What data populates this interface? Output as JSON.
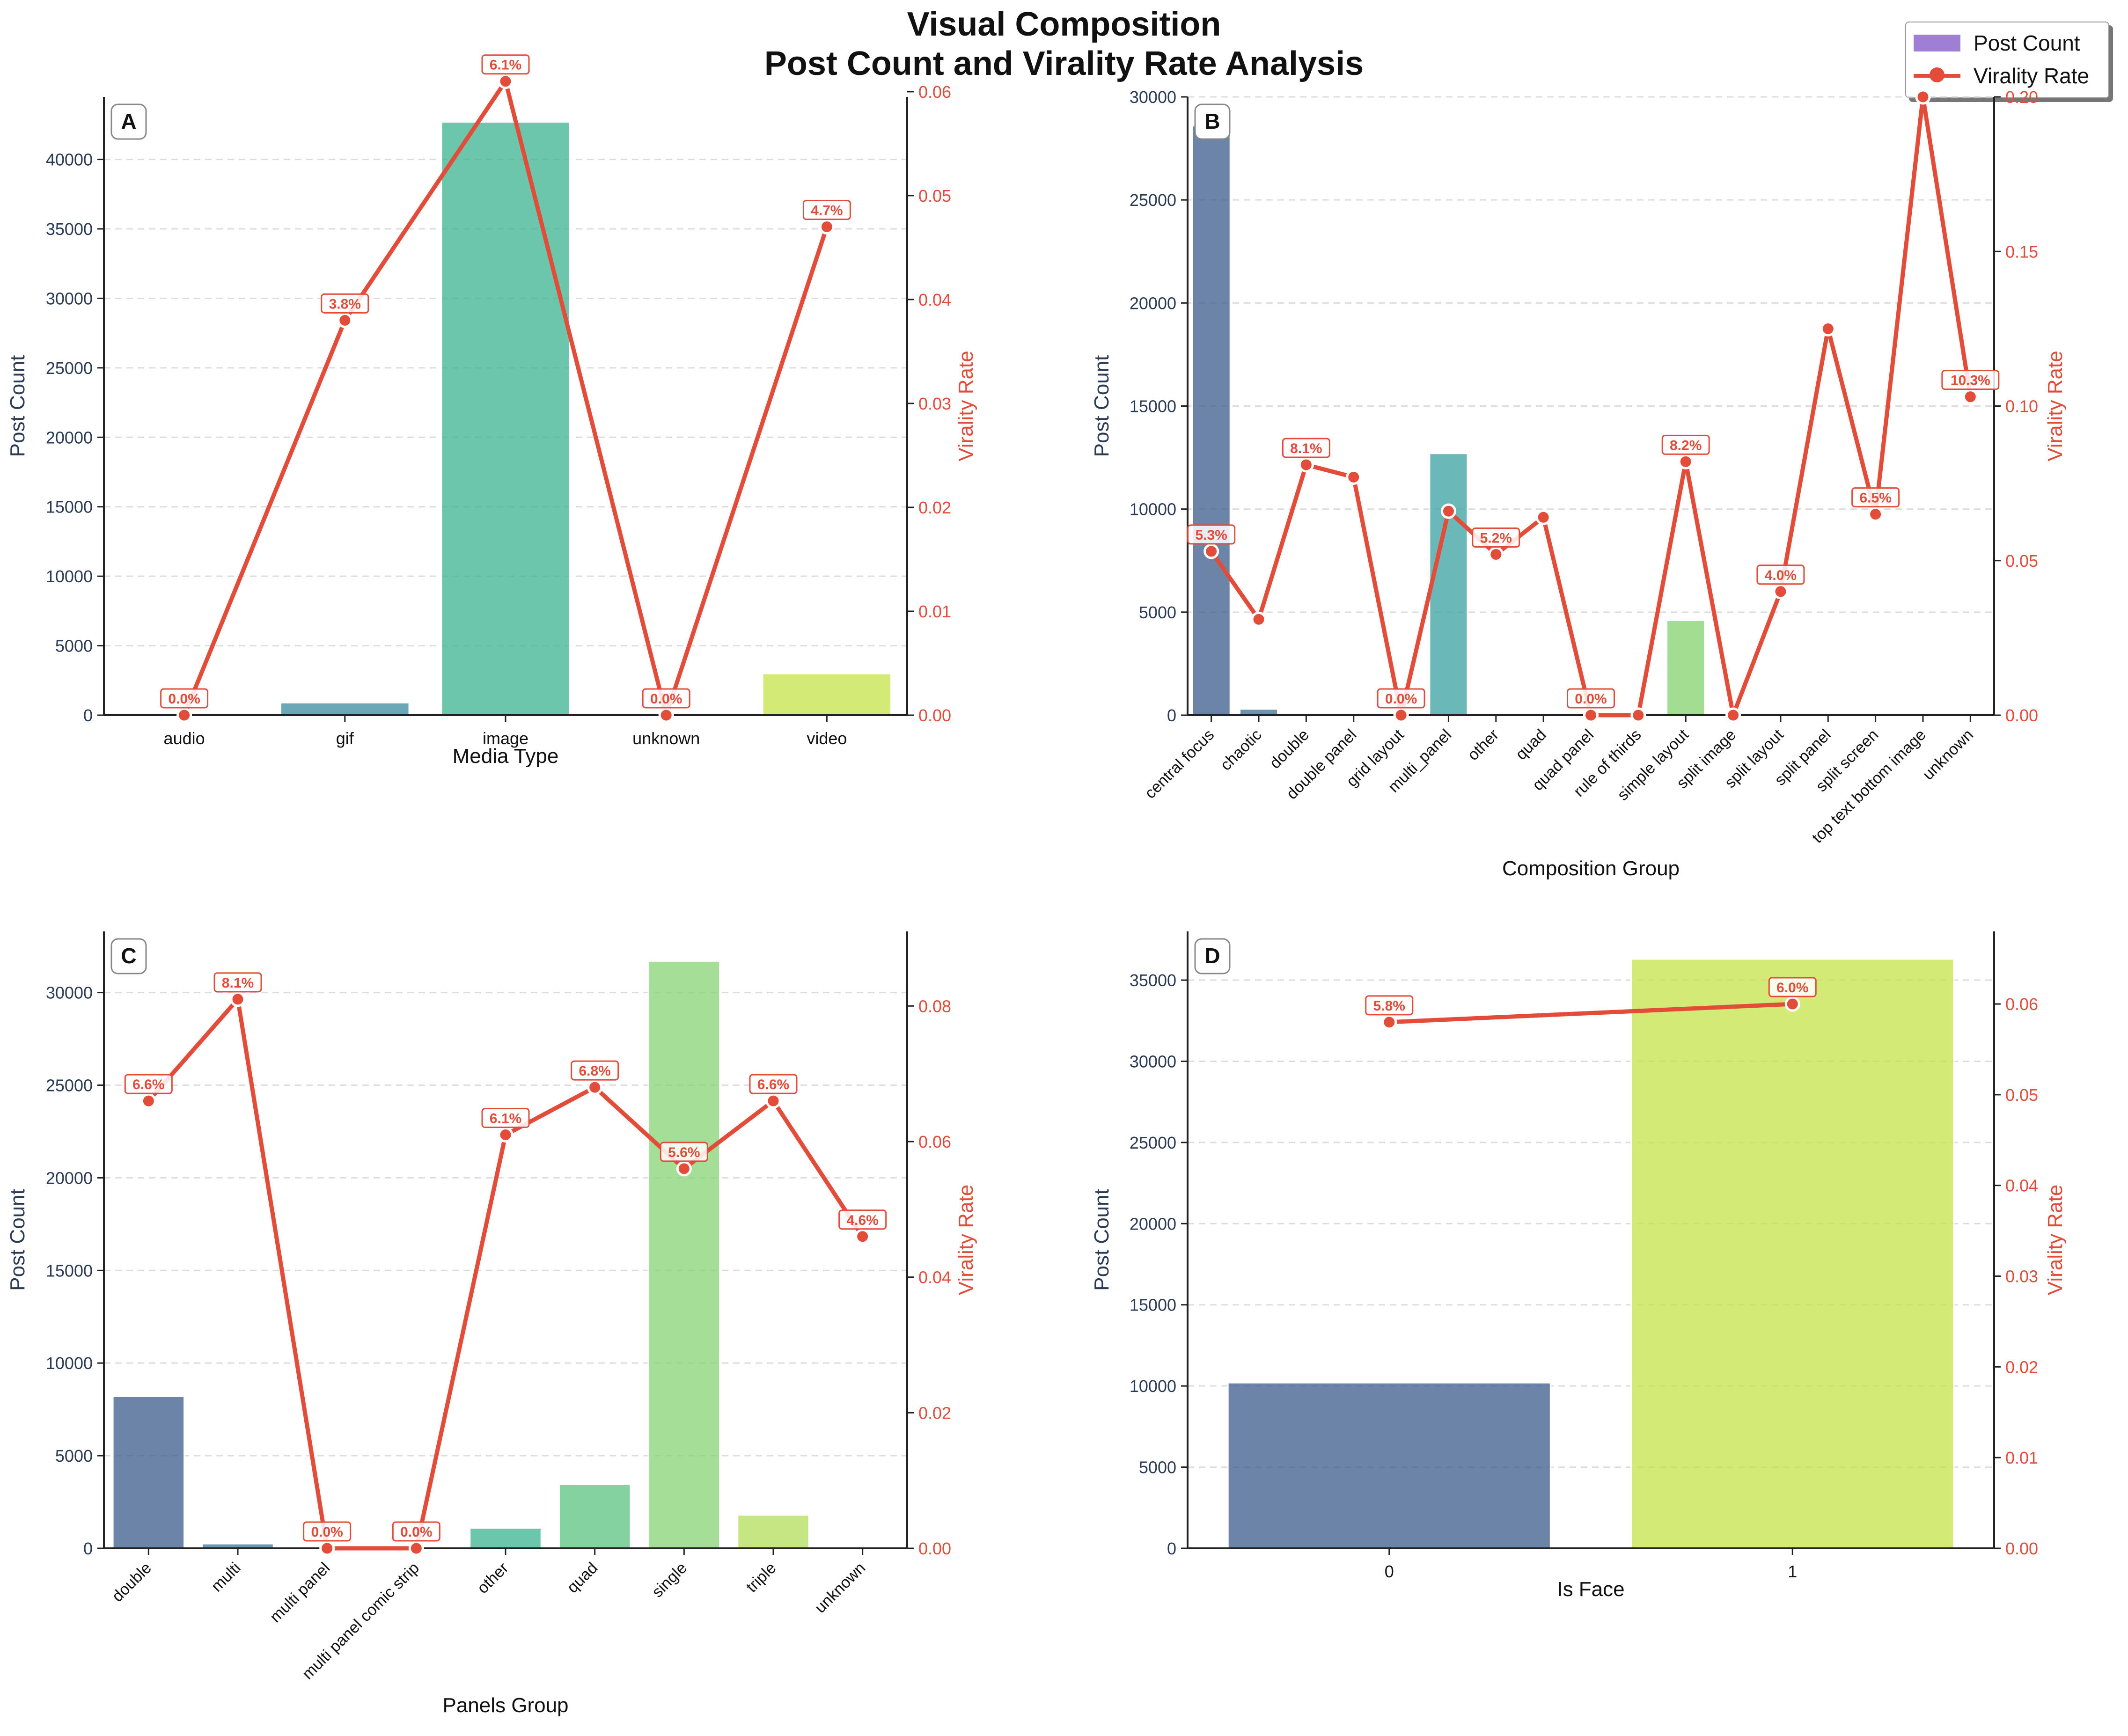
{
  "figure": {
    "title_line1": "Visual Composition",
    "title_line2": "Post Count and Virality Rate Analysis"
  },
  "legend": {
    "bar_label": "Post Count",
    "line_label": "Virality Rate"
  },
  "colors": {
    "line": "#e44c3a",
    "legend_bar": "#9f7fd6",
    "grid": "#dddddd"
  },
  "chart_data": [
    {
      "panel": "A",
      "type": "bar",
      "xlabel": "Media Type",
      "ylabel": "Post Count",
      "y2label": "Virality Rate",
      "categories": [
        "audio",
        "gif",
        "image",
        "unknown",
        "video"
      ],
      "rotate_labels": false,
      "series": [
        {
          "name": "Post Count",
          "values": [
            10,
            900,
            42700,
            10,
            3000
          ]
        },
        {
          "name": "Virality Rate",
          "values": [
            0.0,
            0.038,
            0.061,
            0.0,
            0.047
          ]
        }
      ],
      "line_labels": [
        "0.0%",
        "3.8%",
        "6.1%",
        "0.0%",
        "4.7%"
      ],
      "bar_colors": [
        "#3b5b8a",
        "#3a8a9e",
        "#3bb38f",
        "#6ccc73",
        "#c4e34a"
      ],
      "ylim": [
        0,
        44500
      ],
      "yticks": [
        0,
        5000,
        10000,
        15000,
        20000,
        25000,
        30000,
        35000,
        40000
      ],
      "ytick_labels": [
        "0",
        "5000",
        "10000",
        "15000",
        "20000",
        "25000",
        "30000",
        "35000",
        "40000"
      ],
      "y2lim": [
        0,
        0.0595
      ],
      "y2ticks": [
        0,
        0.01,
        0.02,
        0.03,
        0.04,
        0.05,
        0.06
      ],
      "y2tick_labels": [
        "0.00",
        "0.01",
        "0.02",
        "0.03",
        "0.04",
        "0.05",
        "0.06"
      ]
    },
    {
      "panel": "B",
      "type": "bar",
      "xlabel": "Composition Group",
      "ylabel": "Post Count",
      "y2label": "Virality Rate",
      "categories": [
        "central focus",
        "chaotic",
        "double",
        "double panel",
        "grid layout",
        "multi_panel",
        "other",
        "quad",
        "quad panel",
        "rule of thirds",
        "simple layout",
        "split image",
        "split layout",
        "split panel",
        "split screen",
        "top text bottom image",
        "unknown"
      ],
      "rotate_labels": true,
      "series": [
        {
          "name": "Post Count",
          "values": [
            28600,
            300,
            5,
            5,
            5,
            12700,
            5,
            5,
            60,
            40,
            4600,
            10,
            5,
            5,
            5,
            5,
            5
          ]
        },
        {
          "name": "Virality Rate",
          "values": [
            0.053,
            0.031,
            0.081,
            0.077,
            0.0,
            0.066,
            0.052,
            0.064,
            0.0,
            0.0,
            0.082,
            0.0,
            0.04,
            0.125,
            0.065,
            0.2,
            0.103
          ]
        }
      ],
      "line_labels": [
        "5.3%",
        "",
        "8.1%",
        "",
        "0.0%",
        "",
        "5.2%",
        "",
        "0.0%",
        "",
        "8.2%",
        "",
        "4.0%",
        "",
        "6.5%",
        "",
        "10.3%"
      ],
      "bar_colors": [
        "#3b5b8a",
        "#3b6f94",
        "#3a7d99",
        "#38889c",
        "#37949e",
        "#3aa0a0",
        "#3fab9a",
        "#49b593",
        "#58bf88",
        "#6cc97d",
        "#83d16e",
        "#9dd85e",
        "#b3dd4f",
        "#c4e24a",
        "#cce44a",
        "#cfe64a",
        "#d3e84a"
      ],
      "ylim": [
        0,
        30000
      ],
      "yticks": [
        0,
        5000,
        10000,
        15000,
        20000,
        25000,
        30000
      ],
      "ytick_labels": [
        "0",
        "5000",
        "10000",
        "15000",
        "20000",
        "25000",
        "30000"
      ],
      "y2lim": [
        0,
        0.2
      ],
      "y2ticks": [
        0,
        0.05,
        0.1,
        0.15,
        0.2
      ],
      "y2tick_labels": [
        "0.00",
        "0.05",
        "0.10",
        "0.15",
        "0.20"
      ]
    },
    {
      "panel": "C",
      "type": "bar",
      "xlabel": "Panels Group",
      "ylabel": "Post Count",
      "y2label": "Virality Rate",
      "categories": [
        "double",
        "multi",
        "multi panel",
        "multi panel comic strip",
        "other",
        "quad",
        "single",
        "triple",
        "unknown"
      ],
      "rotate_labels": true,
      "series": [
        {
          "name": "Post Count",
          "values": [
            8200,
            250,
            5,
            5,
            1100,
            3450,
            31700,
            1800,
            50
          ]
        },
        {
          "name": "Virality Rate",
          "values": [
            0.066,
            0.081,
            0.0,
            0.0,
            0.061,
            0.068,
            0.056,
            0.066,
            0.046
          ]
        }
      ],
      "line_labels": [
        "6.6%",
        "8.1%",
        "0.0%",
        "0.0%",
        "6.1%",
        "6.8%",
        "5.6%",
        "6.6%",
        "4.6%"
      ],
      "bar_colors": [
        "#3b5b8a",
        "#3a7497",
        "#388c9e",
        "#3aa39f",
        "#3bb38f",
        "#5bc380",
        "#87d373",
        "#b3de5b",
        "#cfe64a"
      ],
      "ylim": [
        0,
        33300
      ],
      "yticks": [
        0,
        5000,
        10000,
        15000,
        20000,
        25000,
        30000
      ],
      "ytick_labels": [
        "0",
        "5000",
        "10000",
        "15000",
        "20000",
        "25000",
        "30000"
      ],
      "y2lim": [
        0,
        0.091
      ],
      "y2ticks": [
        0,
        0.02,
        0.04,
        0.06,
        0.08
      ],
      "y2tick_labels": [
        "0.00",
        "0.02",
        "0.04",
        "0.06",
        "0.08"
      ]
    },
    {
      "panel": "D",
      "type": "bar",
      "xlabel": "Is Face",
      "ylabel": "Post Count",
      "y2label": "Virality Rate",
      "categories": [
        "0",
        "1"
      ],
      "rotate_labels": false,
      "series": [
        {
          "name": "Post Count",
          "values": [
            10200,
            36300
          ]
        },
        {
          "name": "Virality Rate",
          "values": [
            0.058,
            0.06
          ]
        }
      ],
      "line_labels": [
        "5.8%",
        "6.0%"
      ],
      "bar_colors": [
        "#3b5b8a",
        "#c4e34a"
      ],
      "ylim": [
        0,
        38000
      ],
      "yticks": [
        0,
        5000,
        10000,
        15000,
        20000,
        25000,
        30000,
        35000
      ],
      "ytick_labels": [
        "0",
        "5000",
        "10000",
        "15000",
        "20000",
        "25000",
        "30000",
        "35000"
      ],
      "y2lim": [
        0,
        0.068
      ],
      "y2ticks": [
        0,
        0.01,
        0.02,
        0.03,
        0.04,
        0.05,
        0.06
      ],
      "y2tick_labels": [
        "0.00",
        "0.01",
        "0.02",
        "0.03",
        "0.04",
        "0.05",
        "0.06"
      ]
    }
  ]
}
